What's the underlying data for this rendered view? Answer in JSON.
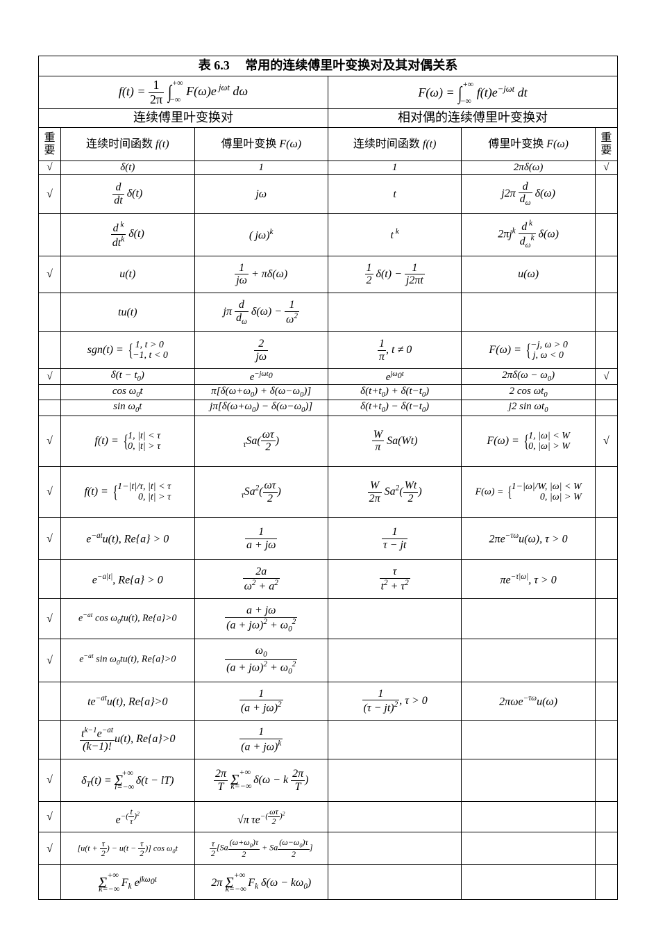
{
  "table": {
    "title_prefix": "表 6.3",
    "title_text": "常用的连续傅里叶变换对及其对偶关系",
    "col_headers": {
      "left_pair": "连续傅里叶变换对",
      "right_pair": "相对偶的连续傅里叶变换对",
      "mark_left": "重要",
      "mark_right": "重要",
      "c1": "连续时间函数 f(t)",
      "c2": "傅里叶变换 F(ω)",
      "c3": "连续时间函数 f(t)",
      "c4": "傅里叶变换 F(ω)"
    },
    "inverse_formula_raw": "f(t) = (1/2π) ∫ F(ω) e^{jωt} dω",
    "forward_formula_raw": "F(ω) = ∫ f(t) e^{-jωt} dt",
    "check_symbol": "√",
    "rows": [
      {
        "chkL": "√",
        "c1": "δ(t)",
        "c2": "1",
        "c3": "1",
        "c4": "2πδ(ω)",
        "chkR": "√",
        "h": "short"
      },
      {
        "chkL": "√",
        "c1": "(d/dt) δ(t)",
        "c2": "jω",
        "c3": "t",
        "c4": "j2π (d/dω) δ(ω)",
        "chkR": "",
        "h": "med"
      },
      {
        "chkL": "",
        "c1": "(d^k/dt^k) δ(t)",
        "c2": "(jω)^k",
        "c3": "t^k",
        "c4": "2π j^k (d^k/dω^k) δ(ω)",
        "chkR": "",
        "h": "med"
      },
      {
        "chkL": "√",
        "c1": "u(t)",
        "c2": "1/(jω) + πδ(ω)",
        "c3": "½ δ(t) − 1/(j2πt)",
        "c4": "u(ω)",
        "chkR": "",
        "h": "med"
      },
      {
        "chkL": "",
        "c1": "t u(t)",
        "c2": "jπ (d/dω) δ(ω) − 1/ω²",
        "c3": "",
        "c4": "",
        "chkR": "",
        "h": "med"
      },
      {
        "chkL": "",
        "c1": "sgn(t) = { 1, t>0; −1, t<0",
        "c2": "2/(jω)",
        "c3": "1/π , t≠0",
        "c4": "F(ω) = { −j, ω>0; j, ω<0",
        "chkR": "",
        "h": "med"
      },
      {
        "chkL": "√",
        "c1": "δ(t − t₀)",
        "c2": "e^{−jωt₀}",
        "c3": "e^{jω₀t}",
        "c4": "2πδ(ω − ω₀)",
        "chkR": "√",
        "h": "short"
      },
      {
        "chkL": "",
        "c1": "cos ω₀t",
        "c2": "π[δ(ω+ω₀) + δ(ω−ω₀)]",
        "c3": "δ(t+t₀) + δ(t−t₀)",
        "c4": "2 cos ωt₀",
        "chkR": "",
        "h": "short"
      },
      {
        "chkL": "",
        "c1": "sin ω₀t",
        "c2": "jπ[δ(ω+ω₀) − δ(ω−ω₀)]",
        "c3": "δ(t+t₀) − δ(t−t₀)",
        "c4": "j2 sin ωt₀",
        "chkR": "",
        "h": "short"
      },
      {
        "chkL": "√",
        "c1": "f(t) = { 1, |t|<τ; 0, |t|>τ",
        "c2": "τ Sa(ωτ/2)",
        "c3": "(W/π) Sa(Wt)",
        "c4": "F(ω) = { 1, |ω|<W; 0, |ω|>W",
        "chkR": "√",
        "h": "vtall"
      },
      {
        "chkL": "√",
        "c1": "f(t) = { 1−|t|/τ, |t|<τ; 0, |t|>τ",
        "c2": "τ Sa²(ωτ/2)",
        "c3": "(W/2π) Sa²(Wt/2)",
        "c4": "F(ω) = { 1−|ω|/W, |ω|<W; 0, |ω|>W",
        "chkR": "",
        "h": "vtall"
      },
      {
        "chkL": "√",
        "c1": "e^{−at} u(t), Re{a}>0",
        "c2": "1/(a+jω)",
        "c3": "1/(τ − jt)",
        "c4": "2π e^{−τω} u(ω), τ>0",
        "chkR": "",
        "h": "tall"
      },
      {
        "chkL": "",
        "c1": "e^{−a|t|}, Re{a}>0",
        "c2": "2a/(ω²+a²)",
        "c3": "τ/(t²+τ²)",
        "c4": "π e^{−τ|ω|}, τ>0",
        "chkR": "",
        "h": "med"
      },
      {
        "chkL": "√",
        "c1": "e^{−at} cos ω₀t u(t), Re{a}>0",
        "c2": "(a+jω)/[(a+jω)²+ω₀²]",
        "c3": "",
        "c4": "",
        "chkR": "",
        "h": "med"
      },
      {
        "chkL": "√",
        "c1": "e^{−at} sin ω₀t u(t), Re{a}>0",
        "c2": "ω₀/[(a+jω)²+ω₀²]",
        "c3": "",
        "c4": "",
        "chkR": "",
        "h": "med"
      },
      {
        "chkL": "",
        "c1": "t e^{−at} u(t), Re{a}>0",
        "c2": "1/(a+jω)²",
        "c3": "1/(τ−jt)², τ>0",
        "c4": "2πω e^{−τω} u(ω)",
        "chkR": "",
        "h": "med"
      },
      {
        "chkL": "",
        "c1": "(t^{k−1} e^{−at}/(k−1)!) u(t), Re{a}>0",
        "c2": "1/(a+jω)^k",
        "c3": "",
        "c4": "",
        "chkR": "",
        "h": "med"
      },
      {
        "chkL": "√",
        "c1": "δ_T(t) = Σ δ(t − lT)",
        "c2": "(2π/T) Σ δ(ω − k 2π/T)",
        "c3": "",
        "c4": "",
        "chkR": "",
        "h": "tall"
      },
      {
        "chkL": "√",
        "c1": "e^{−(t/τ)²}",
        "c2": "√π τ e^{−(ωτ/2)²}",
        "c3": "",
        "c4": "",
        "chkR": "",
        "h": "med"
      },
      {
        "chkL": "√",
        "c1": "[u(t+τ/2) − u(t−τ/2)] cos ω₀t",
        "c2": "(τ/2)[Sa((ω+ω₀)τ/2) + Sa((ω−ω₀)τ/2)]",
        "c3": "",
        "c4": "",
        "chkR": "",
        "h": "med"
      },
      {
        "chkL": "",
        "c1": "Σ F_k e^{jkω₀t}",
        "c2": "2π Σ F_k δ(ω − kω₀)",
        "c3": "",
        "c4": "",
        "chkR": "",
        "h": "med"
      }
    ],
    "colors": {
      "border": "#000000",
      "background": "#ffffff",
      "text": "#000000"
    },
    "font": {
      "family": "Times New Roman / SimSun",
      "title_size_pt": 14,
      "header_size_pt": 13,
      "body_size_pt": 12
    }
  }
}
